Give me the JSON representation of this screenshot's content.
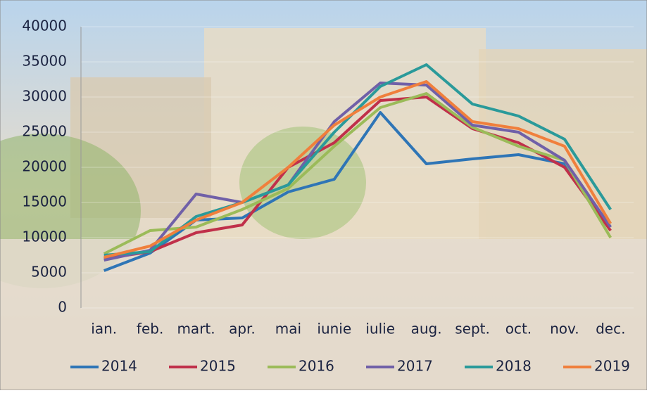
{
  "chart_data": {
    "type": "line",
    "categories": [
      "ian.",
      "feb.",
      "mart.",
      "apr.",
      "mai",
      "iunie",
      "iulie",
      "aug.",
      "sept.",
      "oct.",
      "nov.",
      "dec."
    ],
    "series": [
      {
        "name": "2014",
        "color": "#2e75b6",
        "values": [
          5300,
          7800,
          12500,
          12800,
          16500,
          18300,
          27800,
          20500,
          21200,
          21800,
          20500,
          11500
        ]
      },
      {
        "name": "2015",
        "color": "#c0304a",
        "values": [
          7000,
          8000,
          10700,
          11800,
          20000,
          23500,
          29500,
          30000,
          25500,
          23500,
          20000,
          11000
        ]
      },
      {
        "name": "2016",
        "color": "#9bbb59",
        "values": [
          7700,
          11000,
          11500,
          14000,
          17000,
          23000,
          28500,
          30500,
          25700,
          23000,
          21000,
          10000
        ]
      },
      {
        "name": "2017",
        "color": "#7060a8",
        "values": [
          6800,
          8200,
          16200,
          15000,
          17500,
          26500,
          32000,
          31700,
          26000,
          25000,
          21000,
          11500
        ]
      },
      {
        "name": "2018",
        "color": "#2a9a9a",
        "values": [
          7500,
          8000,
          13000,
          15000,
          17500,
          25000,
          31500,
          34600,
          29000,
          27300,
          24000,
          14000
        ]
      },
      {
        "name": "2019",
        "color": "#f07f3c",
        "values": [
          7200,
          8800,
          12500,
          15000,
          20000,
          26000,
          30000,
          32200,
          26500,
          25500,
          23000,
          12000
        ]
      }
    ],
    "ylim": [
      0,
      40000
    ],
    "yticks": [
      0,
      5000,
      10000,
      15000,
      20000,
      25000,
      30000,
      35000,
      40000
    ],
    "grid": true,
    "legend": "bottom"
  }
}
